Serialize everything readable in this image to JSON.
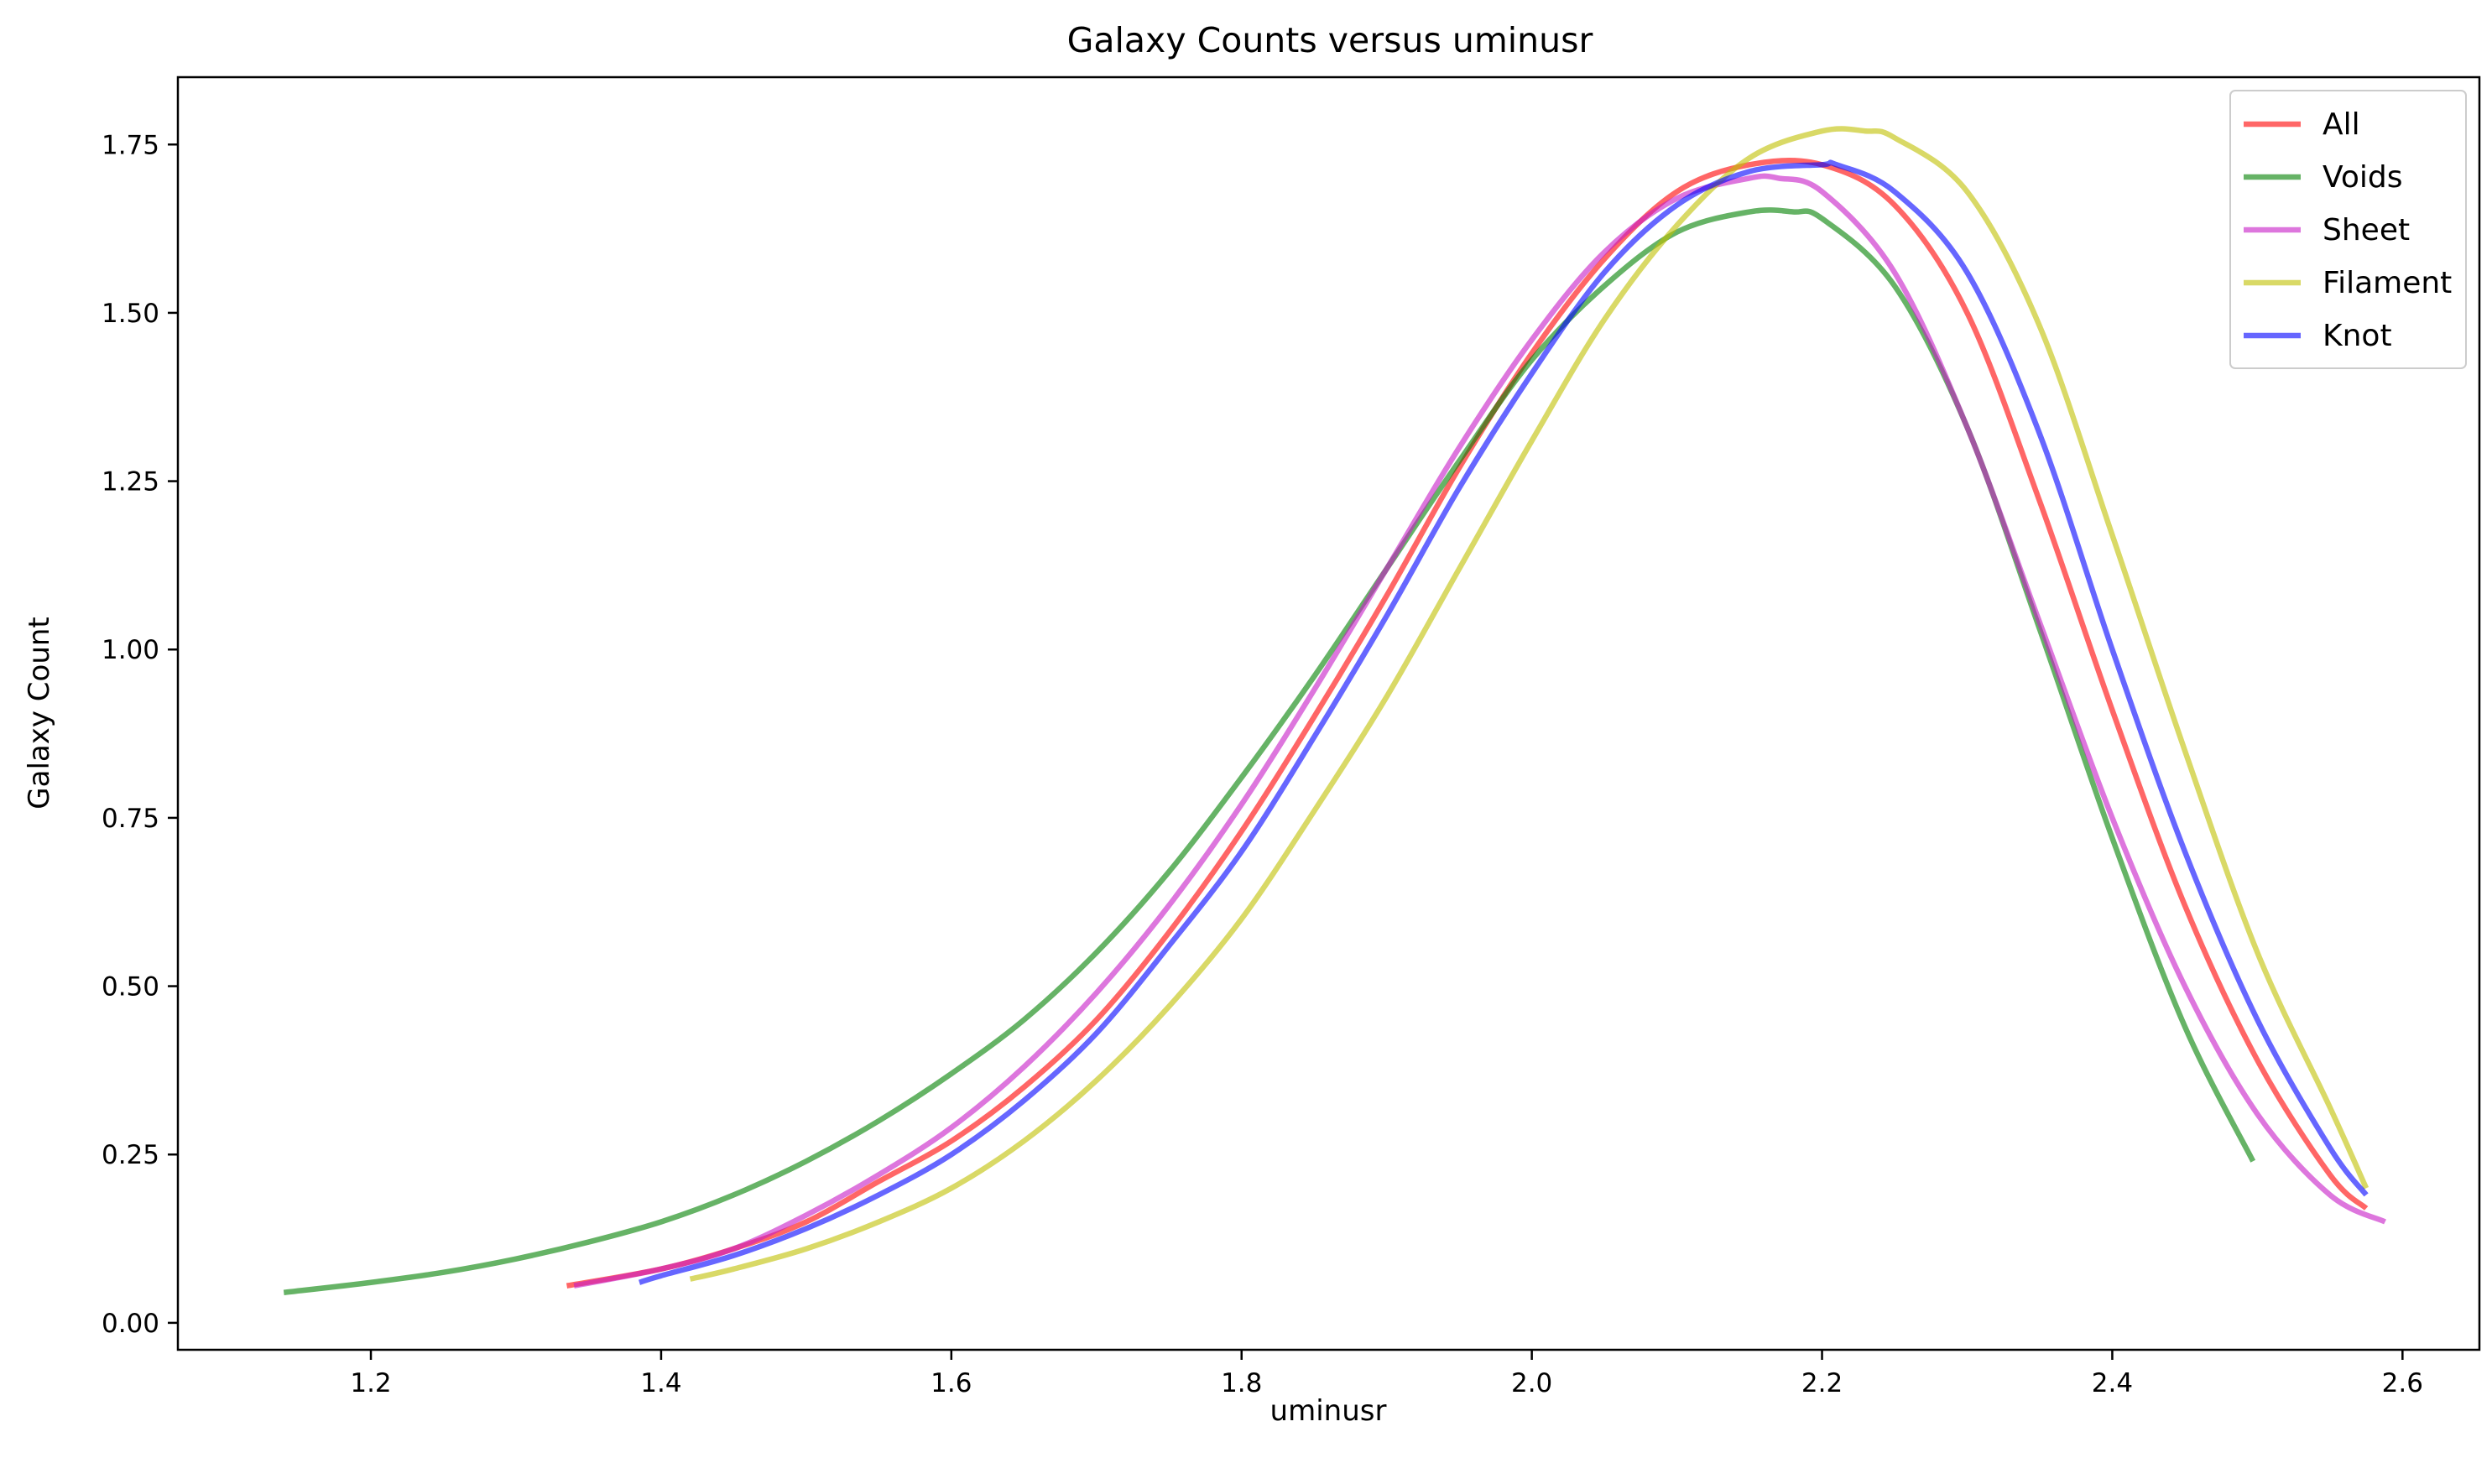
{
  "chart_data": {
    "type": "line",
    "title": "Galaxy Counts versus uminusr",
    "xlabel": "uminusr",
    "ylabel": "Galaxy Count",
    "xlim": [
      1.067,
      2.653
    ],
    "ylim": [
      -0.04,
      1.85
    ],
    "xticks": [
      1.2,
      1.4,
      1.6,
      1.8,
      2.0,
      2.2,
      2.4,
      2.6
    ],
    "xtick_labels": [
      "1.2",
      "1.4",
      "1.6",
      "1.8",
      "2.0",
      "2.2",
      "2.4",
      "2.6"
    ],
    "yticks": [
      0.0,
      0.25,
      0.5,
      0.75,
      1.0,
      1.25,
      1.5,
      1.75
    ],
    "ytick_labels": [
      "0.00",
      "0.25",
      "0.50",
      "0.75",
      "1.00",
      "1.25",
      "1.50",
      "1.75"
    ],
    "grid": false,
    "legend_position": "top-right",
    "series": [
      {
        "name": "All",
        "color": "#ff0000",
        "x": [
          1.335,
          1.4,
          1.45,
          1.5,
          1.55,
          1.6,
          1.65,
          1.7,
          1.75,
          1.8,
          1.85,
          1.9,
          1.95,
          2.0,
          2.05,
          2.1,
          2.15,
          2.2,
          2.25,
          2.3,
          2.35,
          2.4,
          2.45,
          2.5,
          2.55,
          2.575
        ],
        "y": [
          0.055,
          0.08,
          0.11,
          0.15,
          0.21,
          0.27,
          0.35,
          0.45,
          0.58,
          0.73,
          0.9,
          1.08,
          1.27,
          1.44,
          1.58,
          1.68,
          1.72,
          1.72,
          1.66,
          1.5,
          1.22,
          0.91,
          0.62,
          0.39,
          0.22,
          0.17
        ]
      },
      {
        "name": "Voids",
        "color": "#008000",
        "x": [
          1.14,
          1.2,
          1.25,
          1.3,
          1.35,
          1.4,
          1.45,
          1.5,
          1.55,
          1.6,
          1.65,
          1.7,
          1.75,
          1.8,
          1.85,
          1.9,
          1.95,
          2.0,
          2.05,
          2.1,
          2.15,
          2.18,
          2.2,
          2.25,
          2.3,
          2.35,
          2.4,
          2.45,
          2.497
        ],
        "y": [
          0.045,
          0.06,
          0.075,
          0.095,
          0.12,
          0.15,
          0.19,
          0.24,
          0.3,
          0.37,
          0.45,
          0.55,
          0.67,
          0.81,
          0.96,
          1.12,
          1.28,
          1.43,
          1.54,
          1.62,
          1.65,
          1.65,
          1.64,
          1.54,
          1.33,
          1.03,
          0.72,
          0.44,
          0.24
        ]
      },
      {
        "name": "Sheet",
        "color": "#c71bc7",
        "x": [
          1.34,
          1.4,
          1.45,
          1.5,
          1.55,
          1.6,
          1.65,
          1.7,
          1.75,
          1.8,
          1.85,
          1.9,
          1.95,
          2.0,
          2.05,
          2.1,
          2.15,
          2.17,
          2.2,
          2.25,
          2.3,
          2.35,
          2.4,
          2.45,
          2.5,
          2.55,
          2.588
        ],
        "y": [
          0.055,
          0.08,
          0.11,
          0.16,
          0.22,
          0.29,
          0.38,
          0.49,
          0.62,
          0.77,
          0.94,
          1.12,
          1.3,
          1.46,
          1.59,
          1.67,
          1.7,
          1.7,
          1.68,
          1.56,
          1.33,
          1.04,
          0.75,
          0.5,
          0.31,
          0.19,
          0.15
        ]
      },
      {
        "name": "Filament",
        "color": "#bfbf00",
        "x": [
          1.42,
          1.45,
          1.5,
          1.55,
          1.6,
          1.65,
          1.7,
          1.75,
          1.8,
          1.85,
          1.9,
          1.95,
          2.0,
          2.05,
          2.1,
          2.15,
          2.2,
          2.23,
          2.25,
          2.3,
          2.35,
          2.4,
          2.45,
          2.5,
          2.55,
          2.575
        ],
        "y": [
          0.065,
          0.08,
          0.11,
          0.15,
          0.2,
          0.27,
          0.36,
          0.47,
          0.6,
          0.76,
          0.93,
          1.12,
          1.31,
          1.49,
          1.63,
          1.73,
          1.77,
          1.77,
          1.76,
          1.68,
          1.48,
          1.17,
          0.85,
          0.55,
          0.32,
          0.2
        ]
      },
      {
        "name": "Knot",
        "color": "#0000ff",
        "x": [
          1.385,
          1.4,
          1.45,
          1.5,
          1.55,
          1.6,
          1.65,
          1.7,
          1.75,
          1.8,
          1.85,
          1.9,
          1.95,
          2.0,
          2.05,
          2.1,
          2.15,
          2.2,
          2.21,
          2.25,
          2.3,
          2.35,
          2.4,
          2.45,
          2.5,
          2.55,
          2.575
        ],
        "y": [
          0.06,
          0.07,
          0.1,
          0.14,
          0.19,
          0.25,
          0.33,
          0.43,
          0.56,
          0.7,
          0.87,
          1.05,
          1.24,
          1.41,
          1.56,
          1.66,
          1.71,
          1.72,
          1.72,
          1.68,
          1.56,
          1.32,
          1.0,
          0.7,
          0.45,
          0.26,
          0.19
        ]
      }
    ]
  }
}
